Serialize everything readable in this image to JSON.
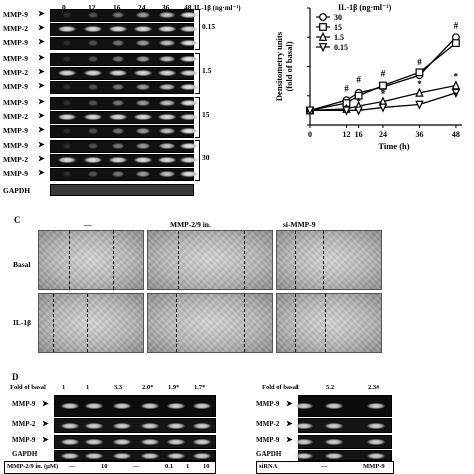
{
  "panelA": {
    "time_labels": [
      "0",
      "12",
      "16",
      "24",
      "36",
      "48"
    ],
    "units_label": "IL-1β (ng·ml⁻¹)",
    "groups": [
      {
        "concentration": "0.15",
        "rows": [
          "MMP-9",
          "MMP-2",
          "MMP-9"
        ]
      },
      {
        "concentration": "1.5",
        "rows": [
          "MMP-9",
          "MMP-2",
          "MMP-9"
        ]
      },
      {
        "concentration": "15",
        "rows": [
          "MMP-9",
          "MMP-2",
          "MMP-9"
        ]
      },
      {
        "concentration": "30",
        "rows": [
          "MMP-9",
          "MMP-2",
          "MMP-9"
        ]
      }
    ],
    "loading_label": "GAPDH"
  },
  "chart_data": {
    "type": "line",
    "title": "",
    "xlabel": "Time (h)",
    "ylabel": "Densitometry units (fold of basal)",
    "x": [
      0,
      12,
      16,
      24,
      36,
      48
    ],
    "xticks": [
      "0",
      "12",
      "16",
      "24",
      "36",
      "48"
    ],
    "ylim": [
      0,
      8
    ],
    "legend_title": "IL-1β (ng·ml⁻¹)",
    "legend_position": "top-left",
    "series": [
      {
        "name": "30",
        "marker": "circle-open",
        "values": [
          1.0,
          1.7,
          2.2,
          2.6,
          3.4,
          6.0
        ]
      },
      {
        "name": "15",
        "marker": "square-open",
        "values": [
          1.0,
          1.5,
          2.0,
          2.7,
          3.6,
          5.6
        ]
      },
      {
        "name": "1.5",
        "marker": "triangle-up-open",
        "values": [
          1.0,
          1.1,
          1.3,
          1.6,
          2.2,
          2.7
        ]
      },
      {
        "name": "0.15",
        "marker": "triangle-down-open",
        "values": [
          1.0,
          1.0,
          1.0,
          1.2,
          1.4,
          2.2
        ]
      }
    ],
    "annotations": [
      {
        "text": "#",
        "x": 12,
        "y": 2.3
      },
      {
        "text": "#",
        "x": 16,
        "y": 2.9
      },
      {
        "text": "#",
        "x": 24,
        "y": 3.3
      },
      {
        "text": "#",
        "x": 36,
        "y": 4.1
      },
      {
        "text": "#",
        "x": 48,
        "y": 6.6
      },
      {
        "text": "*",
        "x": 16,
        "y": 1.4
      },
      {
        "text": "*",
        "x": 24,
        "y": 1.9
      },
      {
        "text": "*",
        "x": 36,
        "y": 2.6
      },
      {
        "text": "*",
        "x": 48,
        "y": 3.1
      },
      {
        "text": "*",
        "x": 48,
        "y": 1.8
      }
    ]
  },
  "panelC": {
    "panel_label": "C",
    "columns": [
      "—",
      "MMP-2/9 in.",
      "si-MMP-9"
    ],
    "rows": [
      "Basal",
      "IL-1β"
    ]
  },
  "panelD": {
    "panel_label": "D",
    "left": {
      "fold_label": "Fold of basal",
      "fold_values": [
        "1",
        "1",
        "3.3",
        "2.0*",
        "1.9*",
        "1.7*"
      ],
      "rows": [
        "MMP-9",
        "MMP-2",
        "MMP-9",
        "GAPDH"
      ],
      "treatment_label": "MMP-2/9 in. (μM)",
      "treatment_values": [
        "—",
        "10",
        "—",
        "0.1",
        "1",
        "10"
      ]
    },
    "right": {
      "fold_label": "Fold of basal",
      "fold_values": [
        "1",
        "5.2",
        "2.3#"
      ],
      "rows": [
        "MMP-9",
        "MMP-2",
        "MMP-9",
        "GAPDH"
      ],
      "treatment_label": "siRNA",
      "treatment_values": [
        "—",
        "MMP-9"
      ]
    }
  }
}
